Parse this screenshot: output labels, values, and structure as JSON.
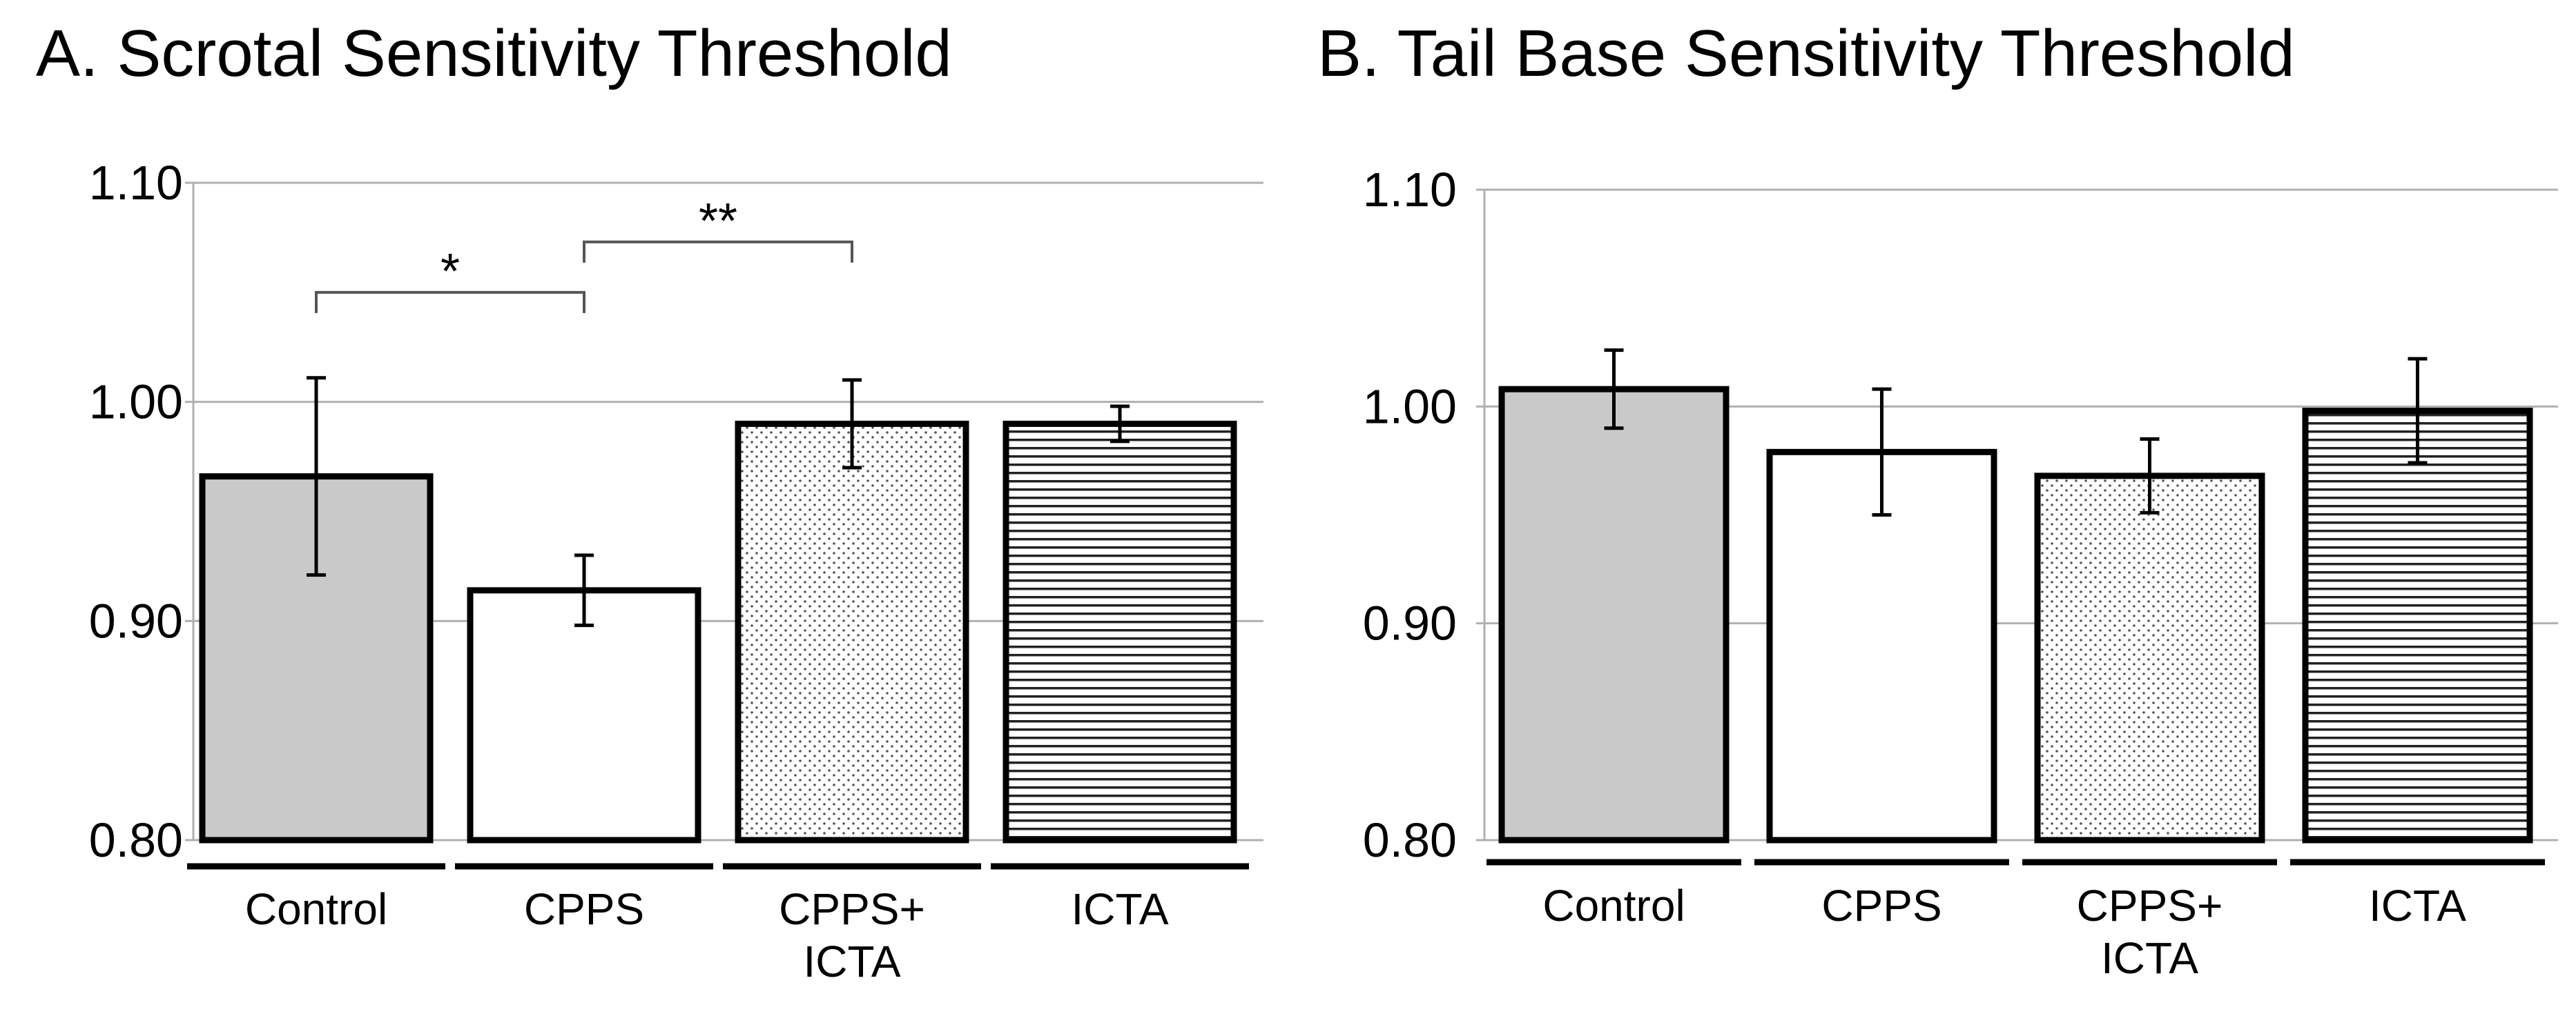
{
  "chart_data": [
    {
      "type": "bar",
      "title": "A. Scrotal Sensitivity Threshold",
      "xlabel": "",
      "ylabel": "",
      "categories": [
        [
          "Control"
        ],
        [
          "CPPS"
        ],
        [
          "CPPS+",
          "ICTA"
        ],
        [
          "ICTA"
        ]
      ],
      "values": [
        0.966,
        0.914,
        0.99,
        0.99
      ],
      "errors": [
        0.045,
        0.016,
        0.02,
        0.008
      ],
      "fills": [
        "gray",
        "white",
        "dots",
        "hlines"
      ],
      "ylim": [
        0.8,
        1.1
      ],
      "yticks": [
        0.8,
        0.9,
        1.0,
        1.1
      ],
      "ytick_labels": [
        "0.80",
        "0.90",
        "1.00",
        "1.10"
      ],
      "grid": true,
      "significance": [
        {
          "from": 0,
          "to": 1,
          "label": "*",
          "y": 1.05
        },
        {
          "from": 1,
          "to": 2,
          "label": "**",
          "y": 1.073
        }
      ]
    },
    {
      "type": "bar",
      "title": "B. Tail Base Sensitivity Threshold",
      "xlabel": "",
      "ylabel": "",
      "categories": [
        [
          "Control"
        ],
        [
          "CPPS"
        ],
        [
          "CPPS+",
          "ICTA"
        ],
        [
          "ICTA"
        ]
      ],
      "values": [
        1.008,
        0.979,
        0.968,
        0.998
      ],
      "errors": [
        0.018,
        0.029,
        0.017,
        0.024
      ],
      "fills": [
        "gray",
        "white",
        "dots",
        "hlines"
      ],
      "ylim": [
        0.8,
        1.1
      ],
      "yticks": [
        0.8,
        0.9,
        1.0,
        1.1
      ],
      "ytick_labels": [
        "0.80",
        "0.90",
        "1.00",
        "1.10"
      ],
      "grid": true,
      "significance": []
    }
  ]
}
